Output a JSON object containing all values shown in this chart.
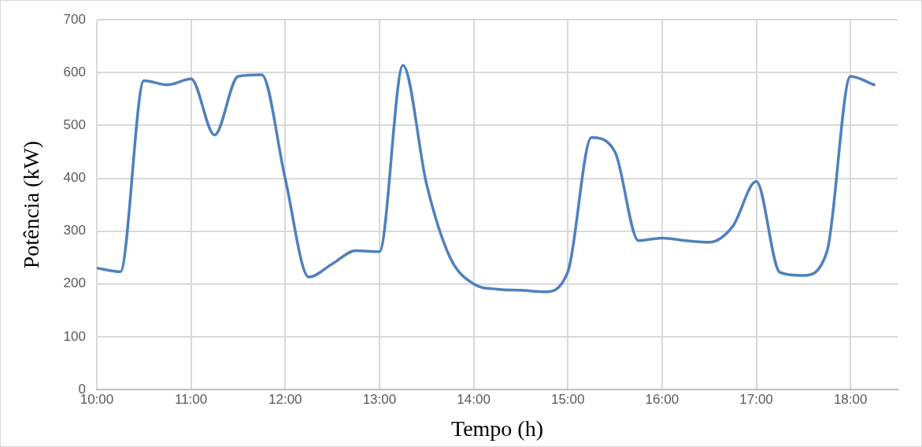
{
  "chart_data": {
    "type": "line",
    "xlabel": "Tempo (h)",
    "ylabel": "Potência (kW)",
    "x": [
      10,
      10.25,
      10.5,
      10.75,
      11,
      11.25,
      11.5,
      11.75,
      12,
      12.25,
      12.5,
      12.75,
      13,
      13.25,
      13.5,
      13.75,
      14,
      14.25,
      14.5,
      14.75,
      15,
      15.25,
      15.5,
      15.75,
      16,
      16.25,
      16.5,
      16.75,
      17,
      17.25,
      17.5,
      17.75,
      18,
      18.25
    ],
    "series": [
      {
        "color": "#4f81bd",
        "values": [
          230,
          223,
          585,
          577,
          588,
          482,
          593,
          596,
          399,
          213,
          238,
          263,
          261,
          614,
          389,
          250,
          200,
          190,
          188,
          185,
          223,
          477,
          450,
          282,
          287,
          282,
          279,
          309,
          394,
          222,
          216,
          261,
          593,
          577
        ]
      }
    ],
    "xlim": [
      10,
      18.5
    ],
    "xticks": [
      {
        "value": 10,
        "label": "10:00"
      },
      {
        "value": 11,
        "label": "11:00"
      },
      {
        "value": 12,
        "label": "12:00"
      },
      {
        "value": 13,
        "label": "13:00"
      },
      {
        "value": 14,
        "label": "14:00"
      },
      {
        "value": 15,
        "label": "15:00"
      },
      {
        "value": 16,
        "label": "16:00"
      },
      {
        "value": 17,
        "label": "17:00"
      },
      {
        "value": 18,
        "label": "18:00"
      }
    ],
    "ylim": [
      0,
      700
    ],
    "yticks": [
      0,
      100,
      200,
      300,
      400,
      500,
      600,
      700
    ],
    "grid": true,
    "legend": false,
    "marker": "none",
    "line_style": "solid"
  }
}
